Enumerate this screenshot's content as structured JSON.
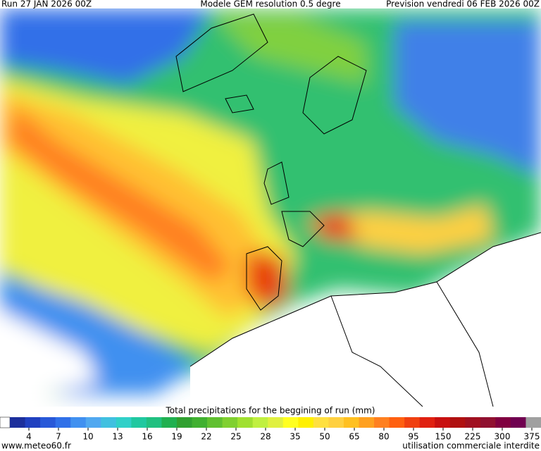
{
  "header": {
    "run": "Run 27 JAN 2026 00Z",
    "model": "Modele GEM resolution 0.5 degre",
    "forecast": "Prevision vendredi 06 FEB 2026 00Z"
  },
  "legend": {
    "title": "Total precipitations for the beggining of run (mm)",
    "ticks": [
      4,
      7,
      10,
      13,
      16,
      19,
      22,
      25,
      28,
      35,
      50,
      65,
      80,
      95,
      150,
      225,
      300,
      375
    ],
    "colors": [
      "#1c2f9c",
      "#2040c0",
      "#2858d8",
      "#3070e8",
      "#4090f0",
      "#50a8f0",
      "#40c0e0",
      "#30d0c8",
      "#20c8a0",
      "#20c080",
      "#20b050",
      "#30a030",
      "#40b030",
      "#60c030",
      "#80d030",
      "#a0e030",
      "#c0f040",
      "#e0f040",
      "#ffff20",
      "#fff000",
      "#ffe040",
      "#ffd040",
      "#ffc020",
      "#ffa020",
      "#ff8020",
      "#ff6010",
      "#f04010",
      "#e02010",
      "#c81010",
      "#b01010",
      "#a01020",
      "#901030",
      "#800040",
      "#700050",
      "#a0a0a0"
    ]
  },
  "footer": {
    "site": "www.meteo60.fr",
    "notice": "utilisation commerciale interdite"
  }
}
